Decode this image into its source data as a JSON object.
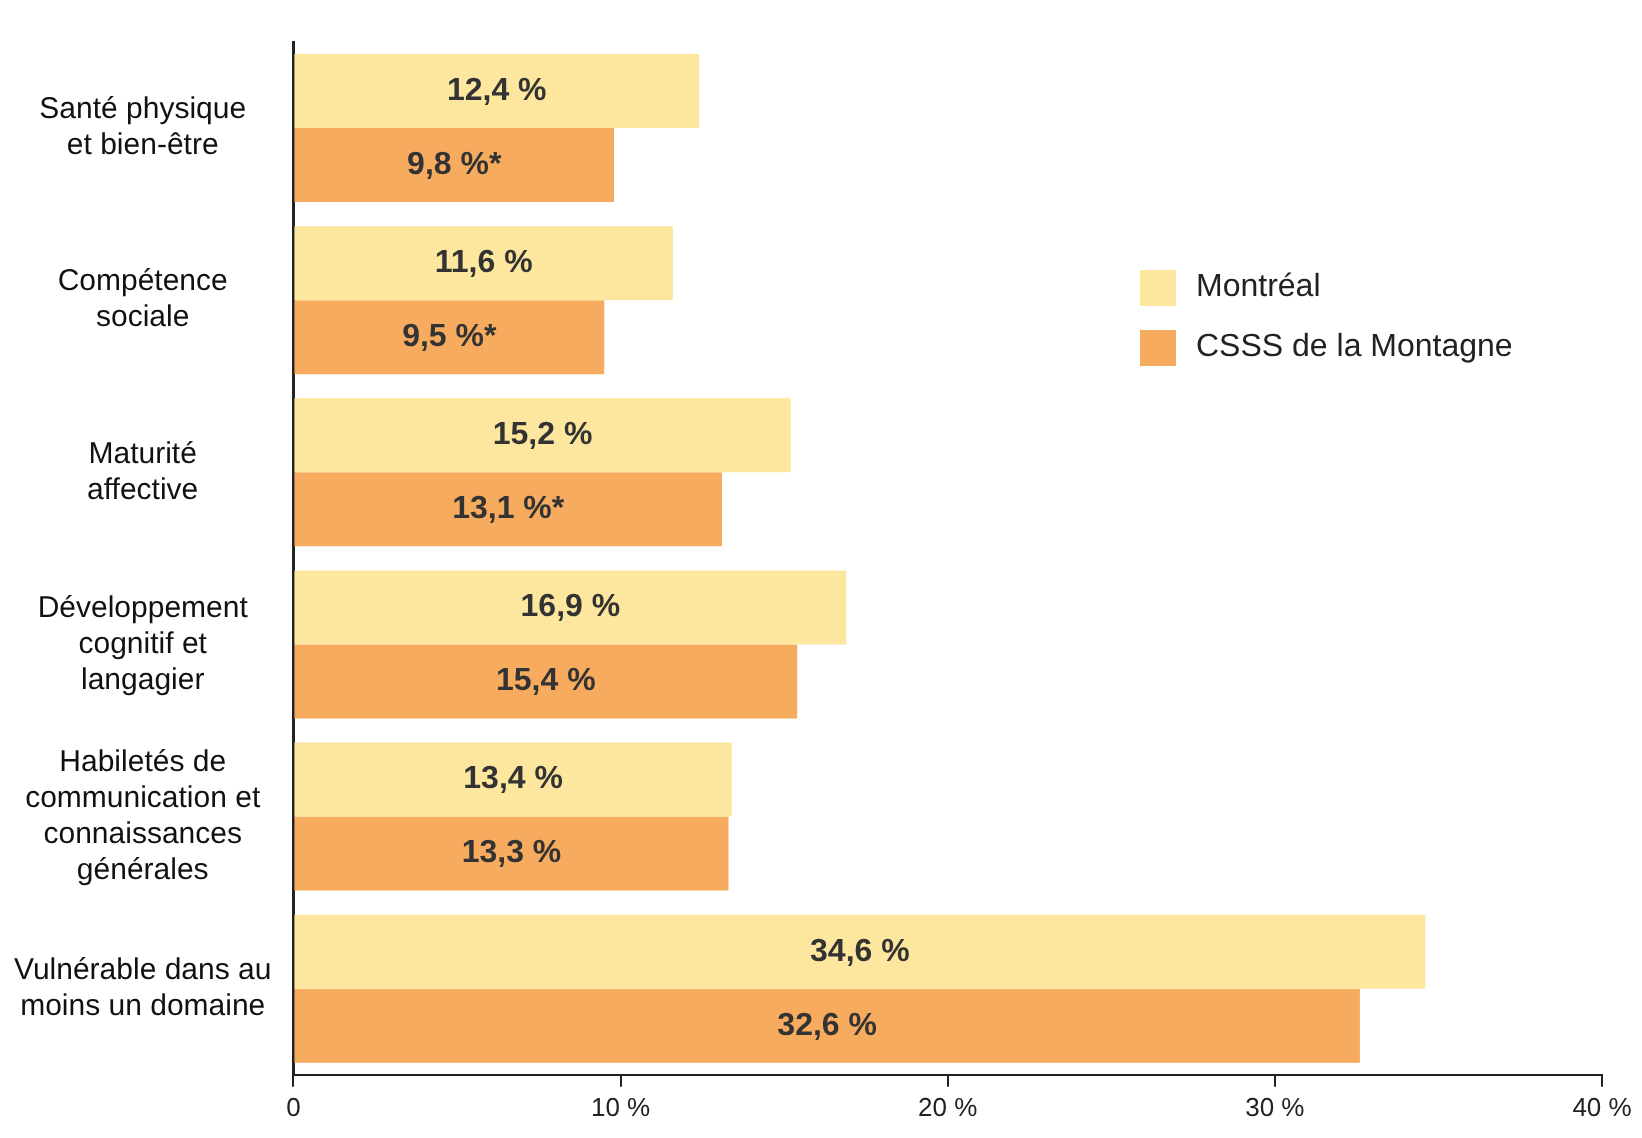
{
  "chart_data": {
    "type": "bar",
    "orientation": "horizontal",
    "categories": [
      "Santé physique\net bien-être",
      "Compétence\nsociale",
      "Maturité\naffective",
      "Développement\ncognitif et\nlangagier",
      "Habiletés de\ncommunication et\nconnaissances\ngénérales",
      "Vulnérable dans au\nmoins un domaine"
    ],
    "series": [
      {
        "name": "Montréal",
        "color": "#fde79e",
        "values": [
          12.4,
          11.6,
          15.2,
          16.9,
          13.4,
          34.6
        ],
        "value_labels": [
          "12,4 %",
          "11,6 %",
          "15,2 %",
          "16,9 %",
          "13,4 %",
          "34,6 %"
        ]
      },
      {
        "name": "CSSS de la Montagne",
        "color": "#f6ab5e",
        "values": [
          9.8,
          9.5,
          13.1,
          15.4,
          13.3,
          32.6
        ],
        "value_labels": [
          "9,8 %*",
          "9,5 %*",
          "13,1 %*",
          "15,4 %",
          "13,3 %",
          "32,6 %"
        ]
      }
    ],
    "xlim": [
      0,
      40
    ],
    "xticks": [
      0,
      {
        "value": 10,
        "label": "10 %"
      },
      {
        "value": 20,
        "label": "20 %"
      },
      {
        "value": 30,
        "label": "30 %"
      },
      {
        "value": 40,
        "label": "40 %"
      }
    ],
    "grid": false,
    "legend": "right"
  }
}
